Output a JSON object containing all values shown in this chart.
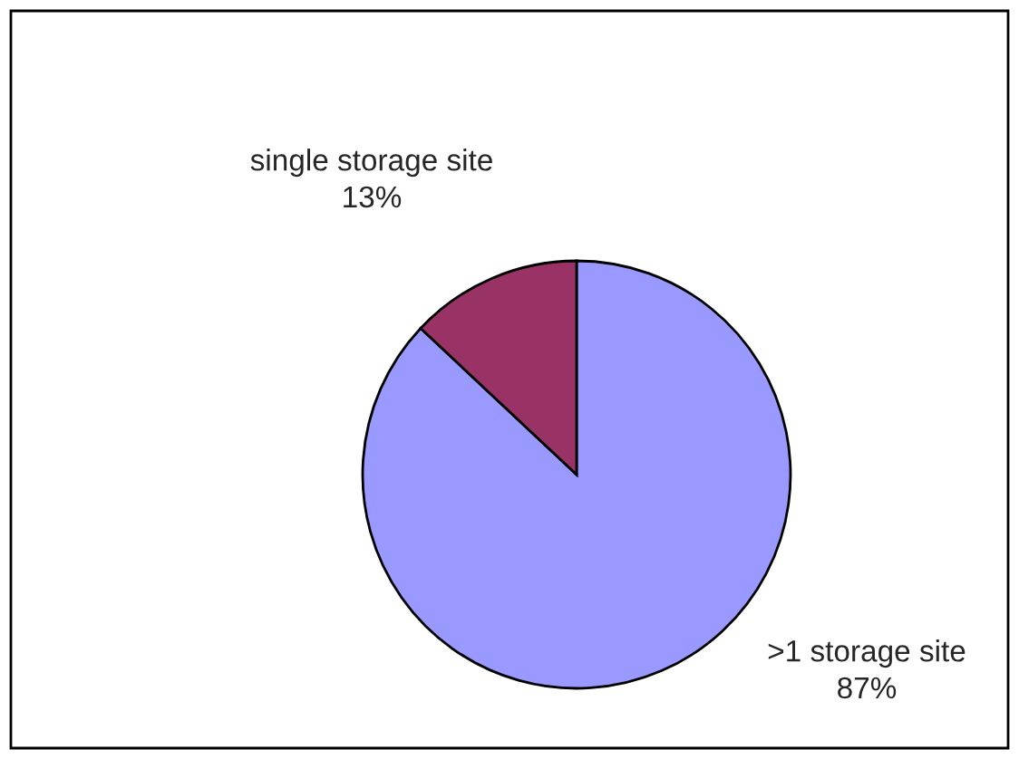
{
  "chart_data": {
    "type": "pie",
    "categories": [
      ">1 storage site",
      "single storage site"
    ],
    "values": [
      87,
      13
    ],
    "value_labels": [
      "87%",
      "13%"
    ],
    "colors": [
      "#9999ff",
      "#993366"
    ]
  }
}
